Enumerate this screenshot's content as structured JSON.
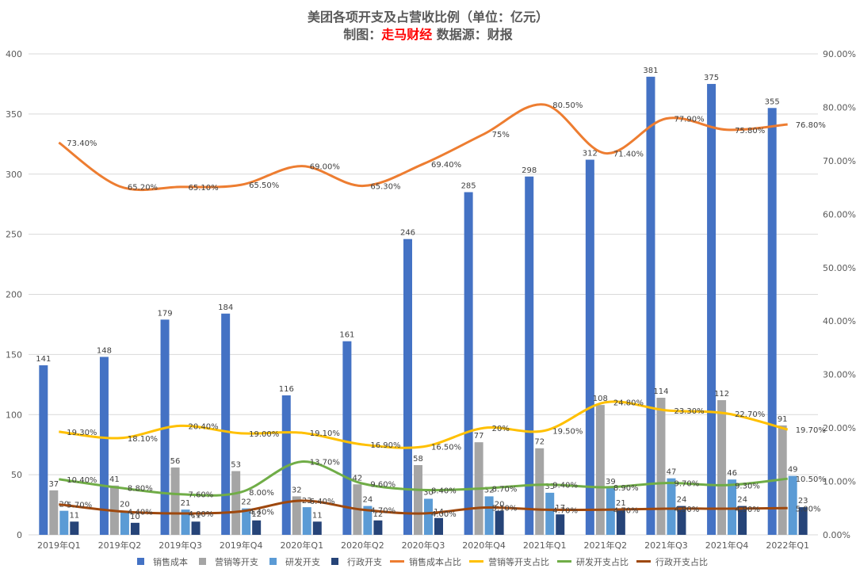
{
  "title": {
    "line1": "美团各项开支及占营收比例（单位：亿元）",
    "line2_prefix": "制图：",
    "line2_highlight": "走马财经",
    "line2_suffix": " 数据源：财报"
  },
  "colors": {
    "sales_cost": "#4472c4",
    "marketing": "#a5a5a5",
    "rd": "#5b9bd5",
    "admin": "#264478",
    "sales_cost_ratio": "#ed7d31",
    "marketing_ratio": "#ffc000",
    "rd_ratio": "#70ad47",
    "admin_ratio": "#9e480e",
    "grid": "#d9d9d9",
    "axis_text": "#595959"
  },
  "chart_data": {
    "type": "bar",
    "title": "美团各项开支及占营收比例（单位：亿元）",
    "categories": [
      "2019年Q1",
      "2019年Q2",
      "2019年Q3",
      "2019年Q4",
      "2020年Q1",
      "2020年Q2",
      "2020年Q3",
      "2020年Q4",
      "2021年Q1",
      "2021年Q2",
      "2021年Q3",
      "2021年Q4",
      "2022年Q1"
    ],
    "y_left": {
      "min": 0,
      "max": 400,
      "step": 50,
      "ticks": [
        "0",
        "50",
        "100",
        "150",
        "200",
        "250",
        "300",
        "350",
        "400"
      ]
    },
    "y_right": {
      "min": 0,
      "max": 90,
      "step": 10,
      "ticks": [
        "0.00%",
        "10.00%",
        "20.00%",
        "30.00%",
        "40.00%",
        "50.00%",
        "60.00%",
        "70.00%",
        "80.00%",
        "90.00%"
      ]
    },
    "grid": true,
    "legend_position": "bottom",
    "bar_series": [
      {
        "key": "sales_cost",
        "name": "销售成本",
        "values": [
          141,
          148,
          179,
          184,
          116,
          161,
          246,
          285,
          298,
          312,
          381,
          375,
          355
        ],
        "labels": [
          "141",
          "148",
          "179",
          "184",
          "116",
          "161",
          "246",
          "285",
          "298",
          "312",
          "381",
          "375",
          "355"
        ]
      },
      {
        "key": "marketing",
        "name": "营销等开支",
        "values": [
          37,
          41,
          56,
          53,
          32,
          42,
          58,
          77,
          72,
          108,
          114,
          112,
          91
        ],
        "labels": [
          "37",
          "41",
          "56",
          "53",
          "32",
          "42",
          "58",
          "77",
          "72",
          "108",
          "114",
          "112",
          "91"
        ]
      },
      {
        "key": "rd",
        "name": "研发开支",
        "values": [
          20,
          20,
          21,
          22,
          23,
          24,
          30,
          32,
          35,
          39,
          47,
          46,
          49
        ],
        "labels": [
          "20",
          "20",
          "21",
          "22",
          "23",
          "24",
          "30",
          "32",
          "35",
          "39",
          "47",
          "46",
          "49"
        ]
      },
      {
        "key": "admin",
        "name": "行政开支",
        "values": [
          11,
          10,
          11,
          12,
          11,
          12,
          14,
          20,
          17,
          21,
          24,
          24,
          23
        ],
        "labels": [
          "11",
          "10",
          "11",
          "12",
          "11",
          "12",
          "14",
          "20",
          "17",
          "21",
          "24",
          "24",
          "23"
        ]
      }
    ],
    "line_series": [
      {
        "key": "sales_cost_ratio",
        "name": "销售成本占比",
        "values": [
          73.4,
          65.2,
          65.1,
          65.5,
          69.0,
          65.3,
          69.4,
          75.0,
          80.5,
          71.4,
          77.9,
          75.8,
          76.8
        ],
        "labels": [
          "73.40%",
          "65.20%",
          "65.10%",
          "65.50%",
          "69.00%",
          "65.30%",
          "69.40%",
          "75%",
          "80.50%",
          "71.40%",
          "77.90%",
          "75.80%",
          "76.80%"
        ]
      },
      {
        "key": "marketing_ratio",
        "name": "营销等开支占比",
        "values": [
          19.3,
          18.1,
          20.4,
          19.0,
          19.1,
          16.9,
          16.5,
          20.0,
          19.5,
          24.8,
          23.3,
          22.7,
          19.7
        ],
        "labels": [
          "19.30%",
          "18.10%",
          "20.40%",
          "19.00%",
          "19.10%",
          "16.90%",
          "16.50%",
          "20%",
          "19.50%",
          "24.80%",
          "23.30%",
          "22.70%",
          "19.70%"
        ]
      },
      {
        "key": "rd_ratio",
        "name": "研发开支占比",
        "values": [
          10.4,
          8.8,
          7.6,
          8.0,
          13.7,
          9.6,
          8.4,
          8.7,
          9.4,
          8.9,
          9.7,
          9.3,
          10.5
        ],
        "labels": [
          "10.40%",
          "8.80%",
          "7.60%",
          "8.00%",
          "13.70%",
          "9.60%",
          "8.40%",
          "8.70%",
          "9.40%",
          "8.90%",
          "9.70%",
          "9.30%",
          "10.50%"
        ]
      },
      {
        "key": "admin_ratio",
        "name": "行政开支占比",
        "values": [
          5.7,
          4.4,
          4.0,
          4.4,
          6.4,
          4.7,
          4.0,
          5.1,
          4.7,
          4.7,
          4.9,
          4.9,
          5.0
        ],
        "labels": [
          "5.70%",
          "4.40%",
          "4.00%",
          "4.40%",
          "6.40%",
          "4.70%",
          "4.00%",
          "5.10%",
          "4.70%",
          "4.70%",
          "4.90%",
          "4.90%",
          "5.00%"
        ]
      }
    ]
  }
}
